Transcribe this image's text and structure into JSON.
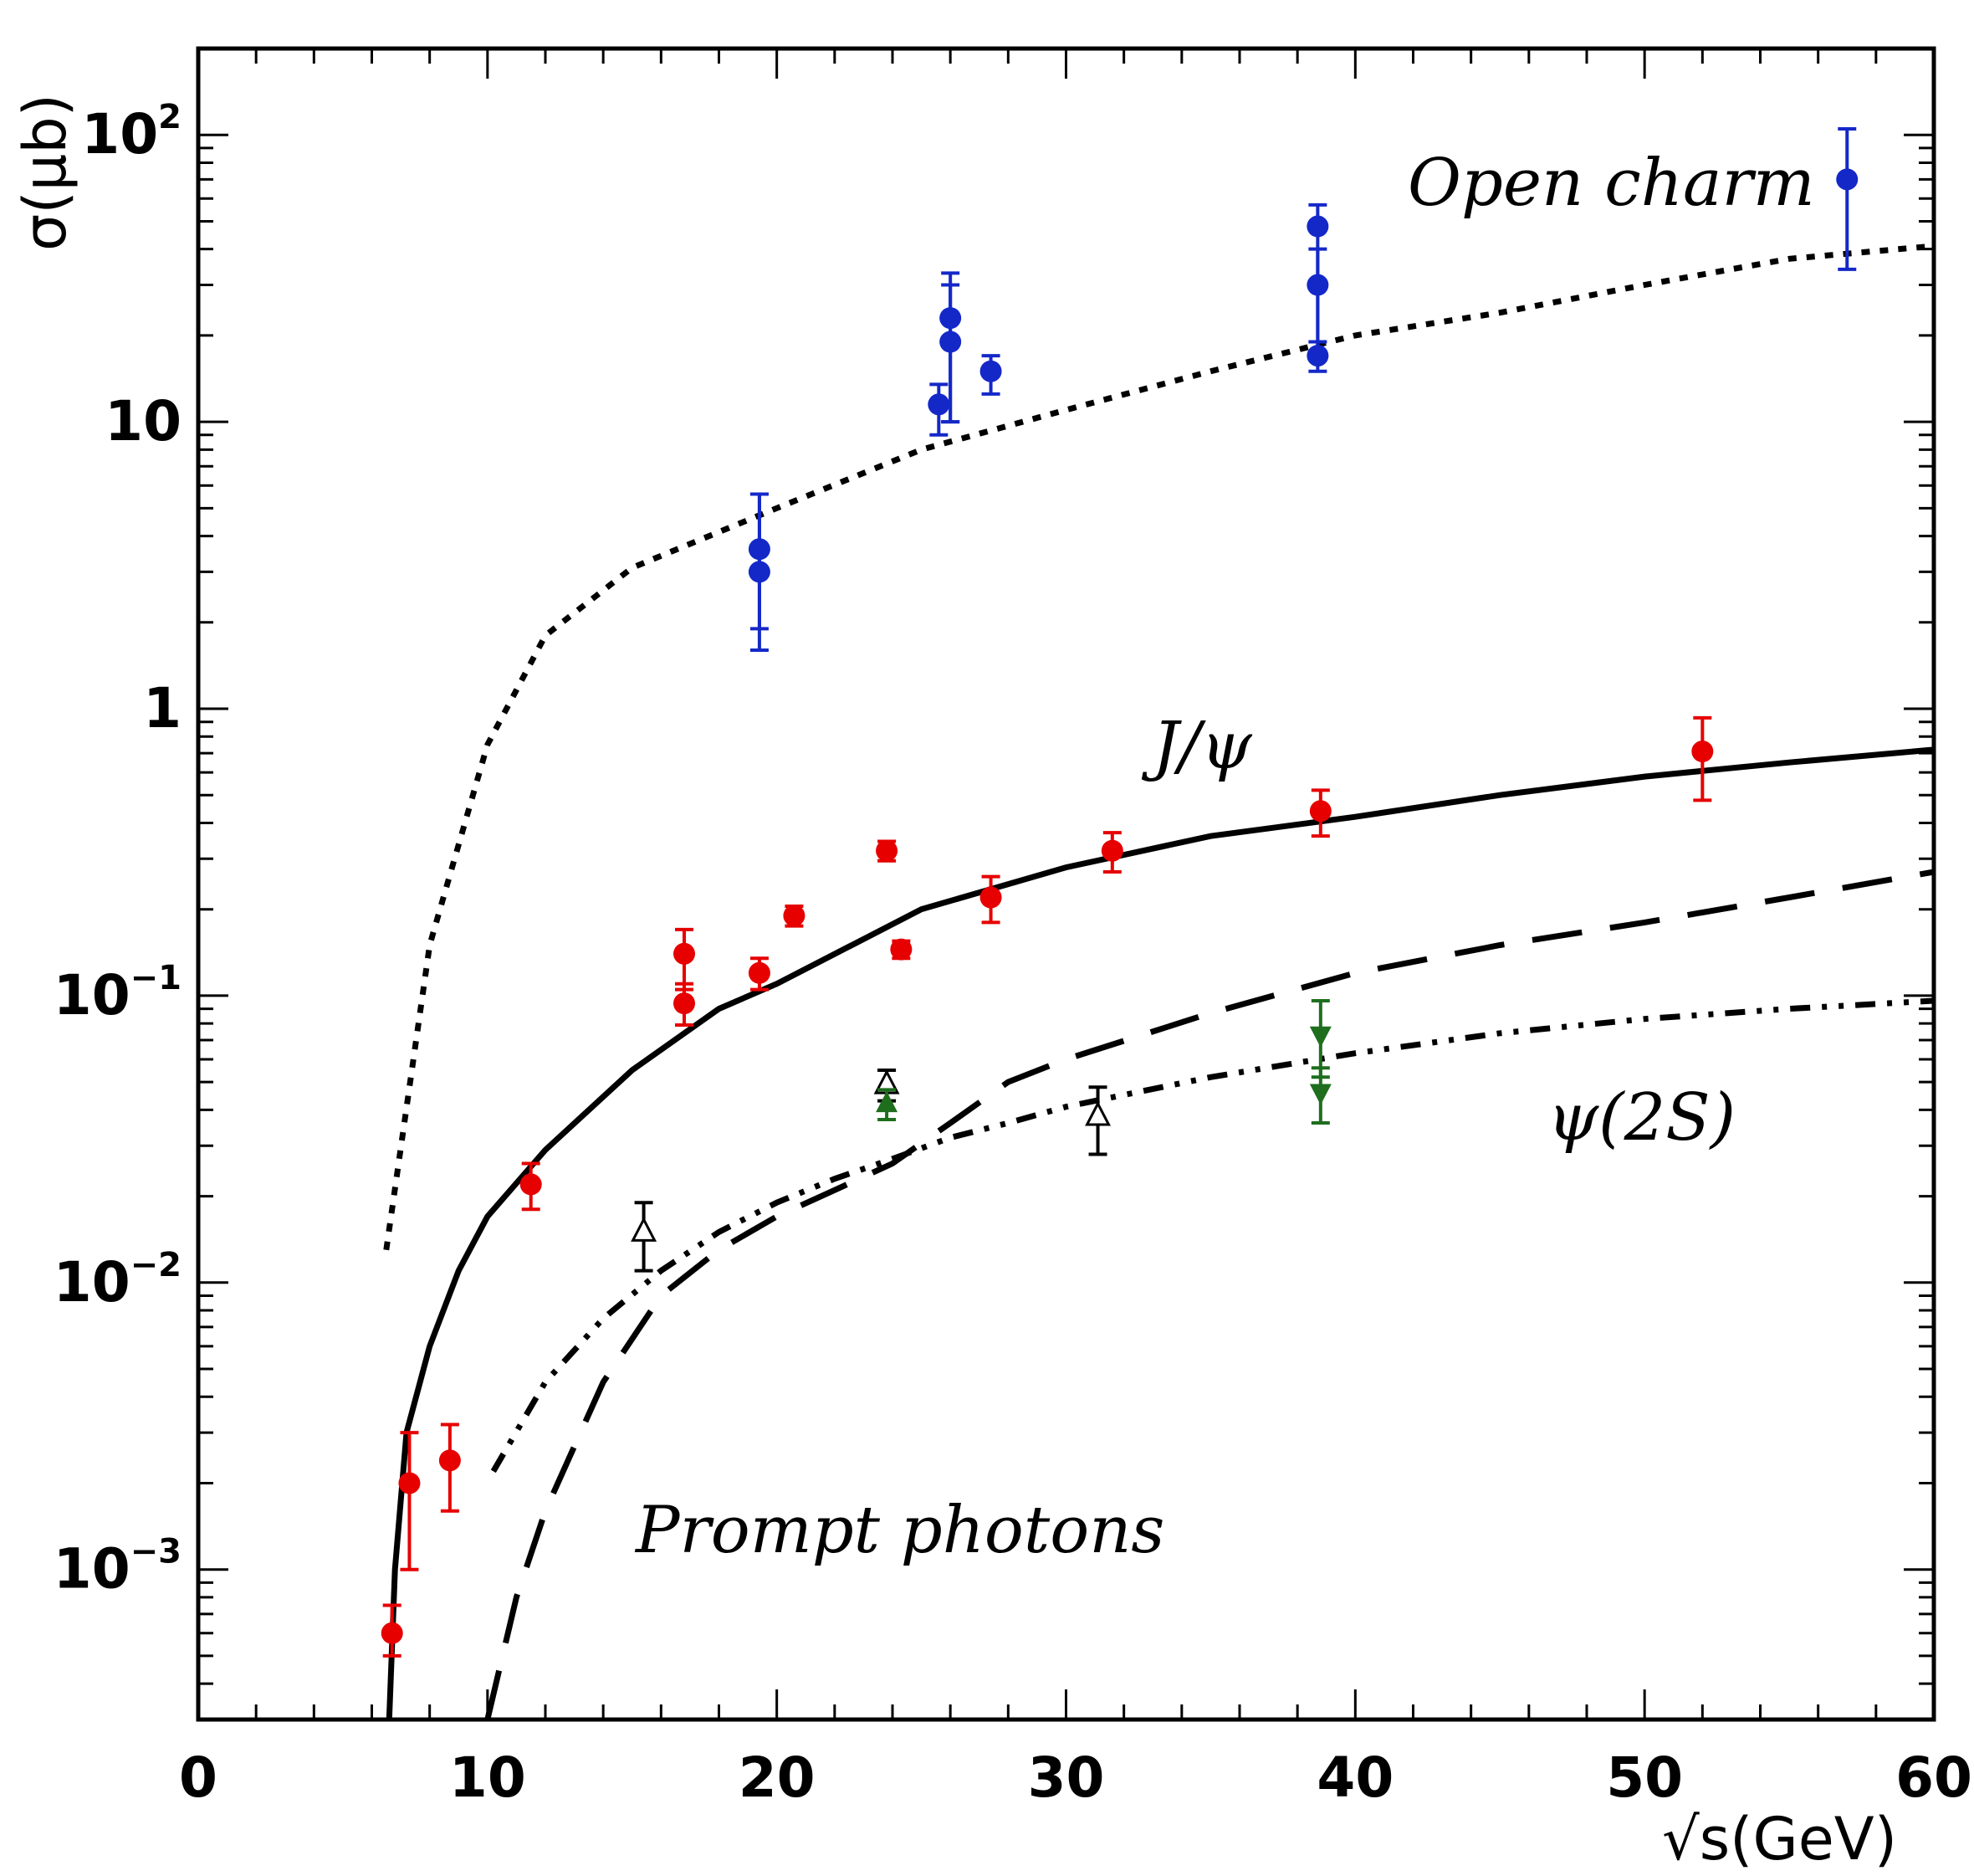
{
  "chart_data": {
    "type": "scatter",
    "title": "",
    "xlabel": "√s(GeV)",
    "ylabel": "σ(μb)",
    "xlim": [
      0,
      60
    ],
    "ylim": [
      0.0003,
      200
    ],
    "yscale": "log",
    "grid": false,
    "x_ticks": [
      "0",
      "10",
      "20",
      "30",
      "40",
      "50",
      "60"
    ],
    "y_ticks": [
      {
        "value": 0.001,
        "base": "10",
        "exp": "−3"
      },
      {
        "value": 0.01,
        "base": "10",
        "exp": "−2"
      },
      {
        "value": 0.1,
        "base": "10",
        "exp": "−1"
      },
      {
        "value": 1,
        "base": "1",
        "exp": ""
      },
      {
        "value": 10,
        "base": "10",
        "exp": ""
      },
      {
        "value": 100,
        "base": "10",
        "exp": "2"
      }
    ],
    "annotations": {
      "open_charm": "Open charm",
      "jpsi": "J/ψ",
      "psi2s": "ψ(2S)",
      "prompt_photons": "Prompt photons"
    },
    "curves": [
      {
        "name": "Open charm theory",
        "style": "dotted",
        "points": [
          [
            6.5,
            0.013
          ],
          [
            8,
            0.15
          ],
          [
            10,
            0.75
          ],
          [
            12,
            1.8
          ],
          [
            15,
            3.1
          ],
          [
            20,
            5
          ],
          [
            25,
            8
          ],
          [
            30,
            11
          ],
          [
            35,
            15
          ],
          [
            40,
            20
          ],
          [
            45,
            24
          ],
          [
            50,
            30
          ],
          [
            55,
            37
          ],
          [
            60,
            41
          ]
        ]
      },
      {
        "name": "J/psi theory",
        "style": "solid",
        "points": [
          [
            6.6,
            0.0003
          ],
          [
            6.8,
            0.001
          ],
          [
            7.2,
            0.003
          ],
          [
            8,
            0.006
          ],
          [
            9,
            0.011
          ],
          [
            10,
            0.017
          ],
          [
            12,
            0.029
          ],
          [
            15,
            0.055
          ],
          [
            18,
            0.09
          ],
          [
            20,
            0.11
          ],
          [
            25,
            0.2
          ],
          [
            30,
            0.28
          ],
          [
            35,
            0.36
          ],
          [
            40,
            0.42
          ],
          [
            45,
            0.5
          ],
          [
            50,
            0.58
          ],
          [
            55,
            0.65
          ],
          [
            60,
            0.72
          ]
        ]
      },
      {
        "name": "Prompt photons theory",
        "style": "dashed",
        "points": [
          [
            10,
            0.0003
          ],
          [
            11,
            0.0008
          ],
          [
            12,
            0.0016
          ],
          [
            14,
            0.0045
          ],
          [
            16,
            0.009
          ],
          [
            18,
            0.013
          ],
          [
            20,
            0.017
          ],
          [
            22,
            0.021
          ],
          [
            24,
            0.026
          ],
          [
            26,
            0.036
          ],
          [
            28,
            0.05
          ],
          [
            30,
            0.06
          ],
          [
            35,
            0.087
          ],
          [
            40,
            0.12
          ],
          [
            45,
            0.15
          ],
          [
            50,
            0.18
          ],
          [
            55,
            0.22
          ],
          [
            60,
            0.27
          ]
        ]
      },
      {
        "name": "psi(2S) theory",
        "style": "dashdot",
        "points": [
          [
            10.2,
            0.0022
          ],
          [
            12,
            0.0045
          ],
          [
            14,
            0.0075
          ],
          [
            16,
            0.011
          ],
          [
            18,
            0.015
          ],
          [
            20,
            0.019
          ],
          [
            22,
            0.023
          ],
          [
            24,
            0.027
          ],
          [
            26,
            0.032
          ],
          [
            28,
            0.036
          ],
          [
            30,
            0.041
          ],
          [
            35,
            0.052
          ],
          [
            40,
            0.063
          ],
          [
            45,
            0.074
          ],
          [
            50,
            0.083
          ],
          [
            55,
            0.09
          ],
          [
            60,
            0.096
          ]
        ]
      }
    ],
    "series": [
      {
        "name": "Open charm data",
        "color": "#1428c8",
        "marker": "circle",
        "points": [
          {
            "x": 19.4,
            "y": 3.0,
            "lo": 1.6,
            "hi": 5.6
          },
          {
            "x": 19.4,
            "y": 3.6,
            "lo": 1.9,
            "hi": 5.6
          },
          {
            "x": 25.6,
            "y": 11.5,
            "lo": 9.0,
            "hi": 13.5
          },
          {
            "x": 26.0,
            "y": 23,
            "lo": 10,
            "hi": 33
          },
          {
            "x": 26.0,
            "y": 19,
            "lo": 10,
            "hi": 30
          },
          {
            "x": 27.4,
            "y": 15,
            "lo": 12.5,
            "hi": 17
          },
          {
            "x": 38.7,
            "y": 48,
            "lo": 17,
            "hi": 57
          },
          {
            "x": 38.7,
            "y": 30,
            "lo": 17,
            "hi": 40
          },
          {
            "x": 38.7,
            "y": 17,
            "lo": 15,
            "hi": 19
          },
          {
            "x": 57.0,
            "y": 70,
            "lo": 34,
            "hi": 105
          }
        ]
      },
      {
        "name": "J/psi data",
        "color": "#e60000",
        "marker": "circle",
        "points": [
          {
            "x": 6.7,
            "y": 0.0006,
            "lo": 0.0005,
            "hi": 0.00075
          },
          {
            "x": 7.3,
            "y": 0.002,
            "lo": 0.001,
            "hi": 0.003
          },
          {
            "x": 8.7,
            "y": 0.0024,
            "lo": 0.0016,
            "hi": 0.0032
          },
          {
            "x": 11.5,
            "y": 0.022,
            "lo": 0.018,
            "hi": 0.026
          },
          {
            "x": 16.8,
            "y": 0.14,
            "lo": 0.105,
            "hi": 0.17
          },
          {
            "x": 16.8,
            "y": 0.094,
            "lo": 0.079,
            "hi": 0.11
          },
          {
            "x": 19.4,
            "y": 0.12,
            "lo": 0.105,
            "hi": 0.135
          },
          {
            "x": 20.6,
            "y": 0.19,
            "lo": 0.175,
            "hi": 0.205
          },
          {
            "x": 23.8,
            "y": 0.32,
            "lo": 0.295,
            "hi": 0.345
          },
          {
            "x": 24.3,
            "y": 0.145,
            "lo": 0.135,
            "hi": 0.155
          },
          {
            "x": 27.4,
            "y": 0.22,
            "lo": 0.18,
            "hi": 0.26
          },
          {
            "x": 31.6,
            "y": 0.32,
            "lo": 0.27,
            "hi": 0.37
          },
          {
            "x": 38.8,
            "y": 0.44,
            "lo": 0.36,
            "hi": 0.52
          },
          {
            "x": 52.0,
            "y": 0.71,
            "lo": 0.48,
            "hi": 0.93
          }
        ]
      },
      {
        "name": "psi(2S) data (open triangles)",
        "color": "#000000",
        "marker": "triangle-up-open",
        "points": [
          {
            "x": 15.4,
            "y": 0.015,
            "lo": 0.011,
            "hi": 0.019
          },
          {
            "x": 23.8,
            "y": 0.049,
            "lo": 0.043,
            "hi": 0.055
          },
          {
            "x": 31.1,
            "y": 0.038,
            "lo": 0.028,
            "hi": 0.048
          }
        ]
      },
      {
        "name": "psi(2S) data (green)",
        "color": "#1e6e1e",
        "marker": "triangle",
        "points": [
          {
            "x": 23.8,
            "y": 0.042,
            "lo": 0.037,
            "hi": 0.047,
            "dir": "up"
          },
          {
            "x": 38.8,
            "y": 0.073,
            "lo": 0.052,
            "hi": 0.096,
            "dir": "down"
          },
          {
            "x": 38.8,
            "y": 0.046,
            "lo": 0.036,
            "hi": 0.056,
            "dir": "down"
          }
        ]
      }
    ]
  }
}
